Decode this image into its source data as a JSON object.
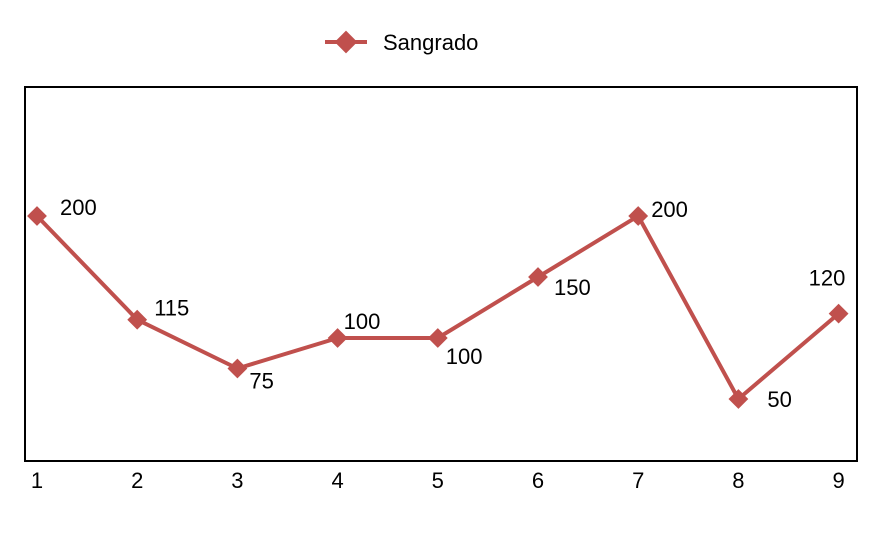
{
  "chart_data": {
    "type": "line",
    "categories": [
      "1",
      "2",
      "3",
      "4",
      "5",
      "6",
      "7",
      "8",
      "9"
    ],
    "series": [
      {
        "name": "Sangrado",
        "values": [
          200,
          115,
          75,
          100,
          100,
          150,
          200,
          50,
          120
        ],
        "color": "#c0504d"
      }
    ],
    "data_labels": [
      "200",
      "115",
      "75",
      "100",
      "100",
      "150",
      "200",
      "50",
      "120"
    ],
    "legend": "top",
    "grid": false,
    "title": "",
    "xlabel": "",
    "ylabel": ""
  }
}
